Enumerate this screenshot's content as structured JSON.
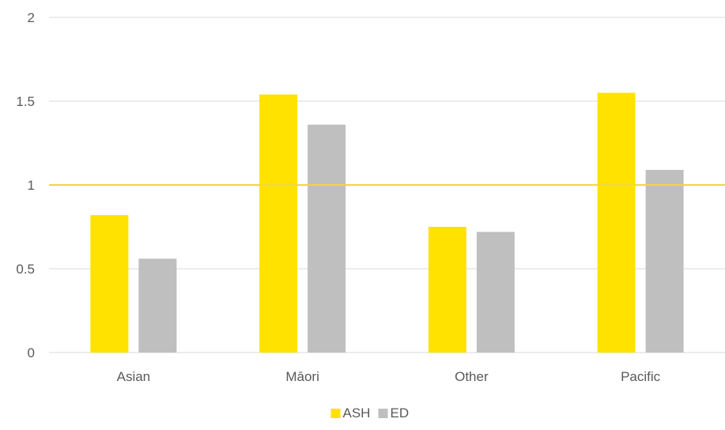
{
  "chart_data": {
    "type": "bar",
    "title": "",
    "xlabel": "",
    "ylabel": "",
    "categories": [
      "Asian",
      "Māori",
      "Other",
      "Pacific"
    ],
    "series": [
      {
        "name": "ASH",
        "color": "#FFE200",
        "values": [
          0.82,
          1.54,
          0.75,
          1.55
        ]
      },
      {
        "name": "ED",
        "color": "#BFBFBF",
        "values": [
          0.56,
          1.36,
          0.72,
          1.09
        ]
      }
    ],
    "ylim": [
      0,
      2
    ],
    "yticks": [
      0,
      0.5,
      1,
      1.5,
      2
    ],
    "ytick_labels": [
      "0",
      "0.5",
      "1",
      "1.5",
      "2"
    ],
    "reference_line": {
      "value": 1,
      "color": "#F2D53C"
    },
    "grid": true,
    "legend_position": "bottom"
  }
}
